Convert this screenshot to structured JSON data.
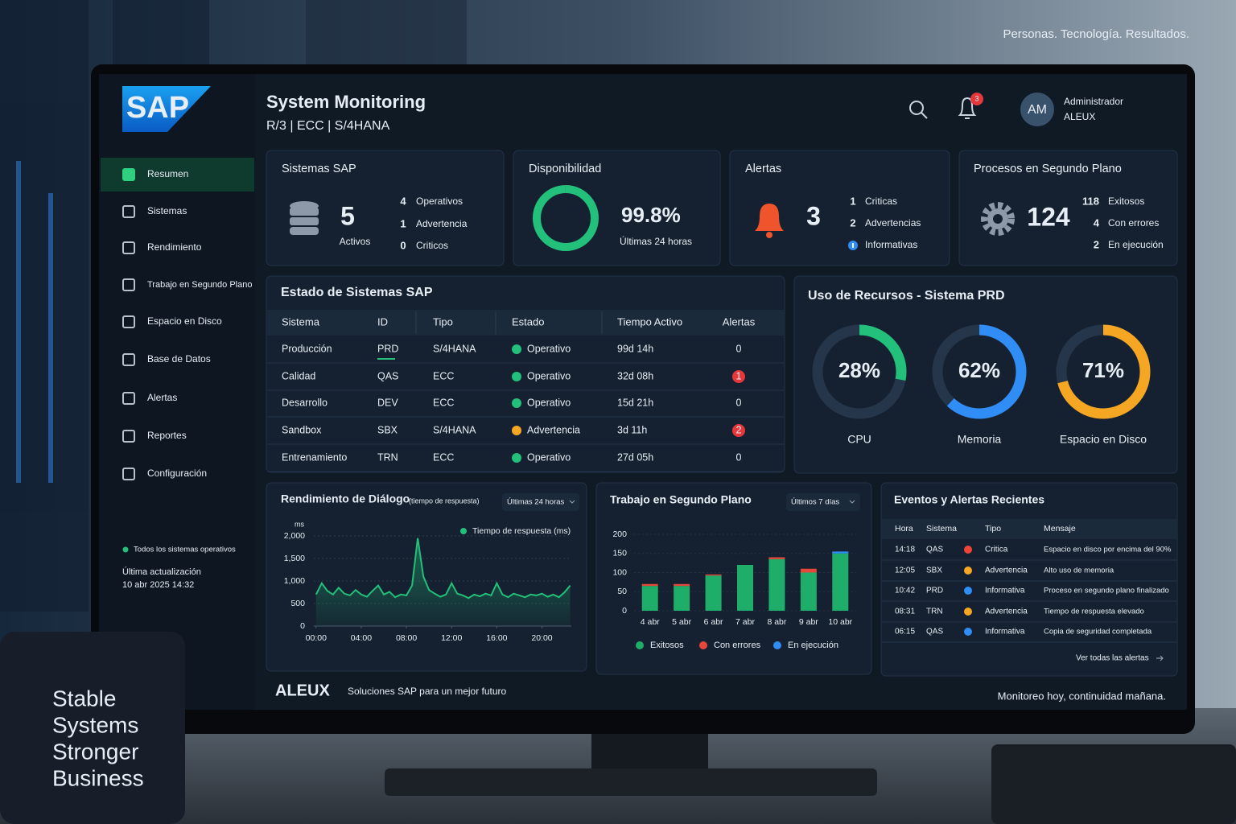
{
  "tagline": "Personas. Tecnología. Resultados.",
  "logo": "SAP",
  "header": {
    "title": "System Monitoring",
    "subtitle": "R/3 | ECC | S/4HANA",
    "notifications": 3,
    "avatar": "AM",
    "user": "Administrador",
    "org": "ALEUX"
  },
  "nav": {
    "items": [
      "Resumen",
      "Sistemas",
      "Rendimiento",
      "Trabajo en Segundo Plano",
      "Espacio en Disco",
      "Base de Datos",
      "Alertas",
      "Reportes",
      "Configuración"
    ],
    "active": 0
  },
  "sidebar_status": {
    "text": "Todos los sistemas operativos",
    "updated_label": "Última actualización",
    "updated": "10 abr 2025 14:32"
  },
  "cards": [
    {
      "title": "Sistemas SAP",
      "value": 5,
      "caption": "Activos",
      "items": [
        {
          "count": 4,
          "label": "Operativos",
          "color": "#2fd07f"
        },
        {
          "count": 1,
          "label": "Advertencia",
          "color": "#f5a623"
        },
        {
          "count": 0,
          "label": "Criticos",
          "color": "#f04438"
        }
      ]
    },
    {
      "title": "Disponibilidad",
      "value": 99.8,
      "value_label": "99.8%",
      "caption": "Últimas 24 horas",
      "color": "#22c07a"
    },
    {
      "title": "Alertas",
      "value": 3,
      "items": [
        {
          "count": 1,
          "label": "Criticas",
          "color": "#f04438"
        },
        {
          "count": 2,
          "label": "Advertencias",
          "color": "#f5a623"
        },
        {
          "label": "Informativas",
          "color": "#2f8df5"
        }
      ]
    },
    {
      "title": "Procesos en Segundo Plano",
      "value": 124,
      "items": [
        {
          "count": 118,
          "label": "Exitosos",
          "color": "#2fd07f"
        },
        {
          "count": 4,
          "label": "Con errores",
          "color": "#f04438"
        },
        {
          "count": 2,
          "label": "En ejecución",
          "color": "#2f8df5"
        }
      ]
    }
  ],
  "systems_table": {
    "title": "Estado de Sistemas SAP",
    "columns": [
      "Sistema",
      "ID",
      "Tipo",
      "Estado",
      "Tiempo Activo",
      "Alertas"
    ],
    "rows": [
      [
        "Producción",
        "PRD",
        "S/4HANA",
        "Operativo",
        "99d 14h",
        0
      ],
      [
        "Calidad",
        "QAS",
        "ECC",
        "Operativo",
        "32d 08h",
        1
      ],
      [
        "Desarrollo",
        "DEV",
        "ECC",
        "Operativo",
        "15d 21h",
        0
      ],
      [
        "Sandbox",
        "SBX",
        "S/4HANA",
        "Advertencia",
        "3d 11h",
        2
      ],
      [
        "Entrenamiento",
        "TRN",
        "ECC",
        "Operativo",
        "27d 05h",
        0
      ]
    ],
    "status_colors": [
      "#22c07a",
      "#22c07a",
      "#22c07a",
      "#f5a623",
      "#22c07a"
    ]
  },
  "resources": {
    "title": "Uso de Recursos - Sistema PRD",
    "gauges": [
      {
        "label": "CPU",
        "value": 28,
        "value_label": "28%",
        "color": "#22c07a"
      },
      {
        "label": "Memoria",
        "value": 62,
        "value_label": "62%",
        "color": "#2f8df5"
      },
      {
        "label": "Espacio en Disco",
        "value": 71,
        "value_label": "71%",
        "color": "#f5a623"
      }
    ]
  },
  "response_chart": {
    "type": "line",
    "title": "Rendimiento de Diálogo",
    "subtitle": "(tiempo de respuesta)",
    "range": "Últimas 24 horas",
    "y_label": "ms",
    "x": [
      0,
      0.5,
      1,
      1.5,
      2,
      2.5,
      3,
      3.5,
      4,
      4.5,
      5,
      5.5,
      6,
      6.5,
      7,
      7.5,
      8,
      8.5,
      9,
      9.5,
      10,
      10.5,
      11,
      11.5,
      12,
      12.5,
      13,
      13.5,
      14,
      14.5,
      15,
      15.5,
      16,
      16.5,
      17,
      17.5,
      18,
      18.5,
      19,
      19.5,
      20,
      20.5,
      21,
      21.5,
      22,
      22.5
    ],
    "series": [
      {
        "name": "Tiempo de respuesta (ms)",
        "color": "#22c07a",
        "values": [
          700,
          950,
          780,
          700,
          850,
          720,
          680,
          800,
          700,
          650,
          780,
          900,
          700,
          760,
          640,
          700,
          680,
          900,
          1950,
          1100,
          800,
          720,
          650,
          700,
          950,
          720,
          680,
          620,
          700,
          660,
          720,
          680,
          950,
          700,
          640,
          720,
          680,
          640,
          700,
          680,
          720,
          650,
          700,
          640,
          750,
          900
        ]
      }
    ],
    "xlim": [
      -0.2,
      22.6
    ],
    "xticks": [
      {
        "value": 0,
        "label": "00:00"
      },
      {
        "value": 4,
        "label": "04:00"
      },
      {
        "value": 8,
        "label": "08:00"
      },
      {
        "value": 12,
        "label": "12:00"
      },
      {
        "value": 16,
        "label": "16:00"
      },
      {
        "value": 20,
        "label": "20:00"
      }
    ],
    "ylim": [
      0,
      2000
    ],
    "yticks": [
      0,
      500,
      {
        "value": 1000,
        "label": "1,000"
      },
      {
        "value": 1500,
        "label": "1,500"
      },
      {
        "value": 2000,
        "label": "2,000"
      }
    ],
    "grid": true
  },
  "jobs_chart": {
    "type": "bar",
    "title": "Trabajo en Segundo Plano",
    "range": "Últimos 7 días",
    "categories": [
      "4 abr",
      "5 abr",
      "6 abr",
      "7 abr",
      "8 abr",
      "9 abr",
      "10 abr"
    ],
    "series": [
      {
        "name": "Exitosos",
        "color": "#1fae6a",
        "values": [
          65,
          65,
          92,
          120,
          135,
          100,
          150
        ]
      },
      {
        "name": "Con errores",
        "color": "#e5483b",
        "values": [
          5,
          5,
          3,
          0,
          5,
          10,
          0
        ]
      },
      {
        "name": "En ejecución",
        "color": "#2f8df5",
        "values": [
          0,
          0,
          0,
          0,
          0,
          0,
          5
        ]
      }
    ],
    "ylim": [
      0,
      200
    ],
    "yticks": [
      0,
      50,
      100,
      150,
      200
    ]
  },
  "events": {
    "title": "Eventos y Alertas Recientes",
    "columns": [
      "Hora",
      "Sistema",
      "Tipo",
      "Mensaje"
    ],
    "rows": [
      [
        "14:18",
        "QAS",
        "Critica",
        "Espacio en disco por encima del 90%"
      ],
      [
        "12:05",
        "SBX",
        "Advertencia",
        "Alto uso de memoria"
      ],
      [
        "10:42",
        "PRD",
        "Informativa",
        "Proceso en segundo plano finalizado"
      ],
      [
        "08:31",
        "TRN",
        "Advertencia",
        "Tiempo de respuesta elevado"
      ],
      [
        "06:15",
        "QAS",
        "Informativa",
        "Copia de seguridad completada"
      ]
    ],
    "type_colors": [
      "#f04438",
      "#f5a623",
      "#2f8df5",
      "#f5a623",
      "#2f8df5"
    ],
    "link": "Ver todas las alertas"
  },
  "footer": {
    "brand": "ALEUX",
    "slogan": "Soluciones SAP para un mejor futuro",
    "motto": "Monitoreo hoy, continuidad mañana."
  },
  "mug": [
    "Stable",
    "Systems",
    "Stronger",
    "Business"
  ]
}
